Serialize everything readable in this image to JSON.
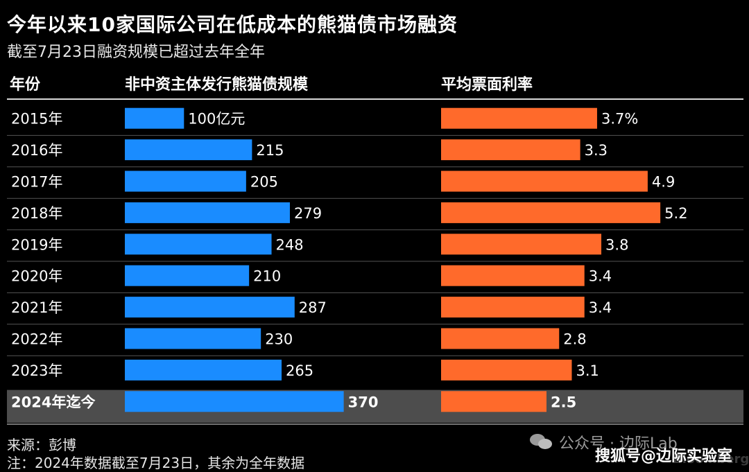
{
  "title": "今年以来10家国际公司在低成本的熊猫债市场融资",
  "subtitle": "截至7月23日融资规模已超过去年全年",
  "headers": {
    "year": "年份",
    "issuance": "非中资主体发行熊猫债规模",
    "coupon": "平均票面利率"
  },
  "source": "来源：彭博",
  "note": "注：2024年数据截至7月23日，其余为全年数据",
  "watermark": {
    "account": "公众号 · 边际Lab",
    "icon": "wechat-icon",
    "sohu": "搜狐号@边际实验室",
    "brand": "Bloomberg"
  },
  "colors": {
    "background": "#000000",
    "issuance_bar": "#1a8cff",
    "coupon_bar": "#ff6a2b",
    "highlight_row": "#4d4d4d",
    "row_divider": "#555555"
  },
  "chart_data": {
    "type": "bar",
    "orientation": "horizontal",
    "categories": [
      "2015年",
      "2016年",
      "2017年",
      "2018年",
      "2019年",
      "2020年",
      "2021年",
      "2022年",
      "2023年",
      "2024年迄今"
    ],
    "highlight_category": "2024年迄今",
    "series": [
      {
        "name": "非中资主体发行熊猫债规模",
        "values": [
          100,
          215,
          205,
          279,
          248,
          210,
          287,
          230,
          265,
          370
        ],
        "labels": [
          "100亿元",
          "215",
          "205",
          "279",
          "248",
          "210",
          "287",
          "230",
          "265",
          "370"
        ]
      },
      {
        "name": "平均票面利率",
        "values": [
          3.7,
          3.3,
          4.9,
          5.2,
          3.8,
          3.4,
          3.4,
          2.8,
          3.1,
          2.5
        ],
        "labels": [
          "3.7%",
          "3.3",
          "4.9",
          "5.2",
          "3.8",
          "3.4",
          "3.4",
          "2.8",
          "3.1",
          "2.5"
        ]
      }
    ],
    "title": "今年以来10家国际公司在低成本的熊猫债市场融资",
    "subtitle": "截至7月23日融资规模已超过去年全年",
    "grid": false
  }
}
